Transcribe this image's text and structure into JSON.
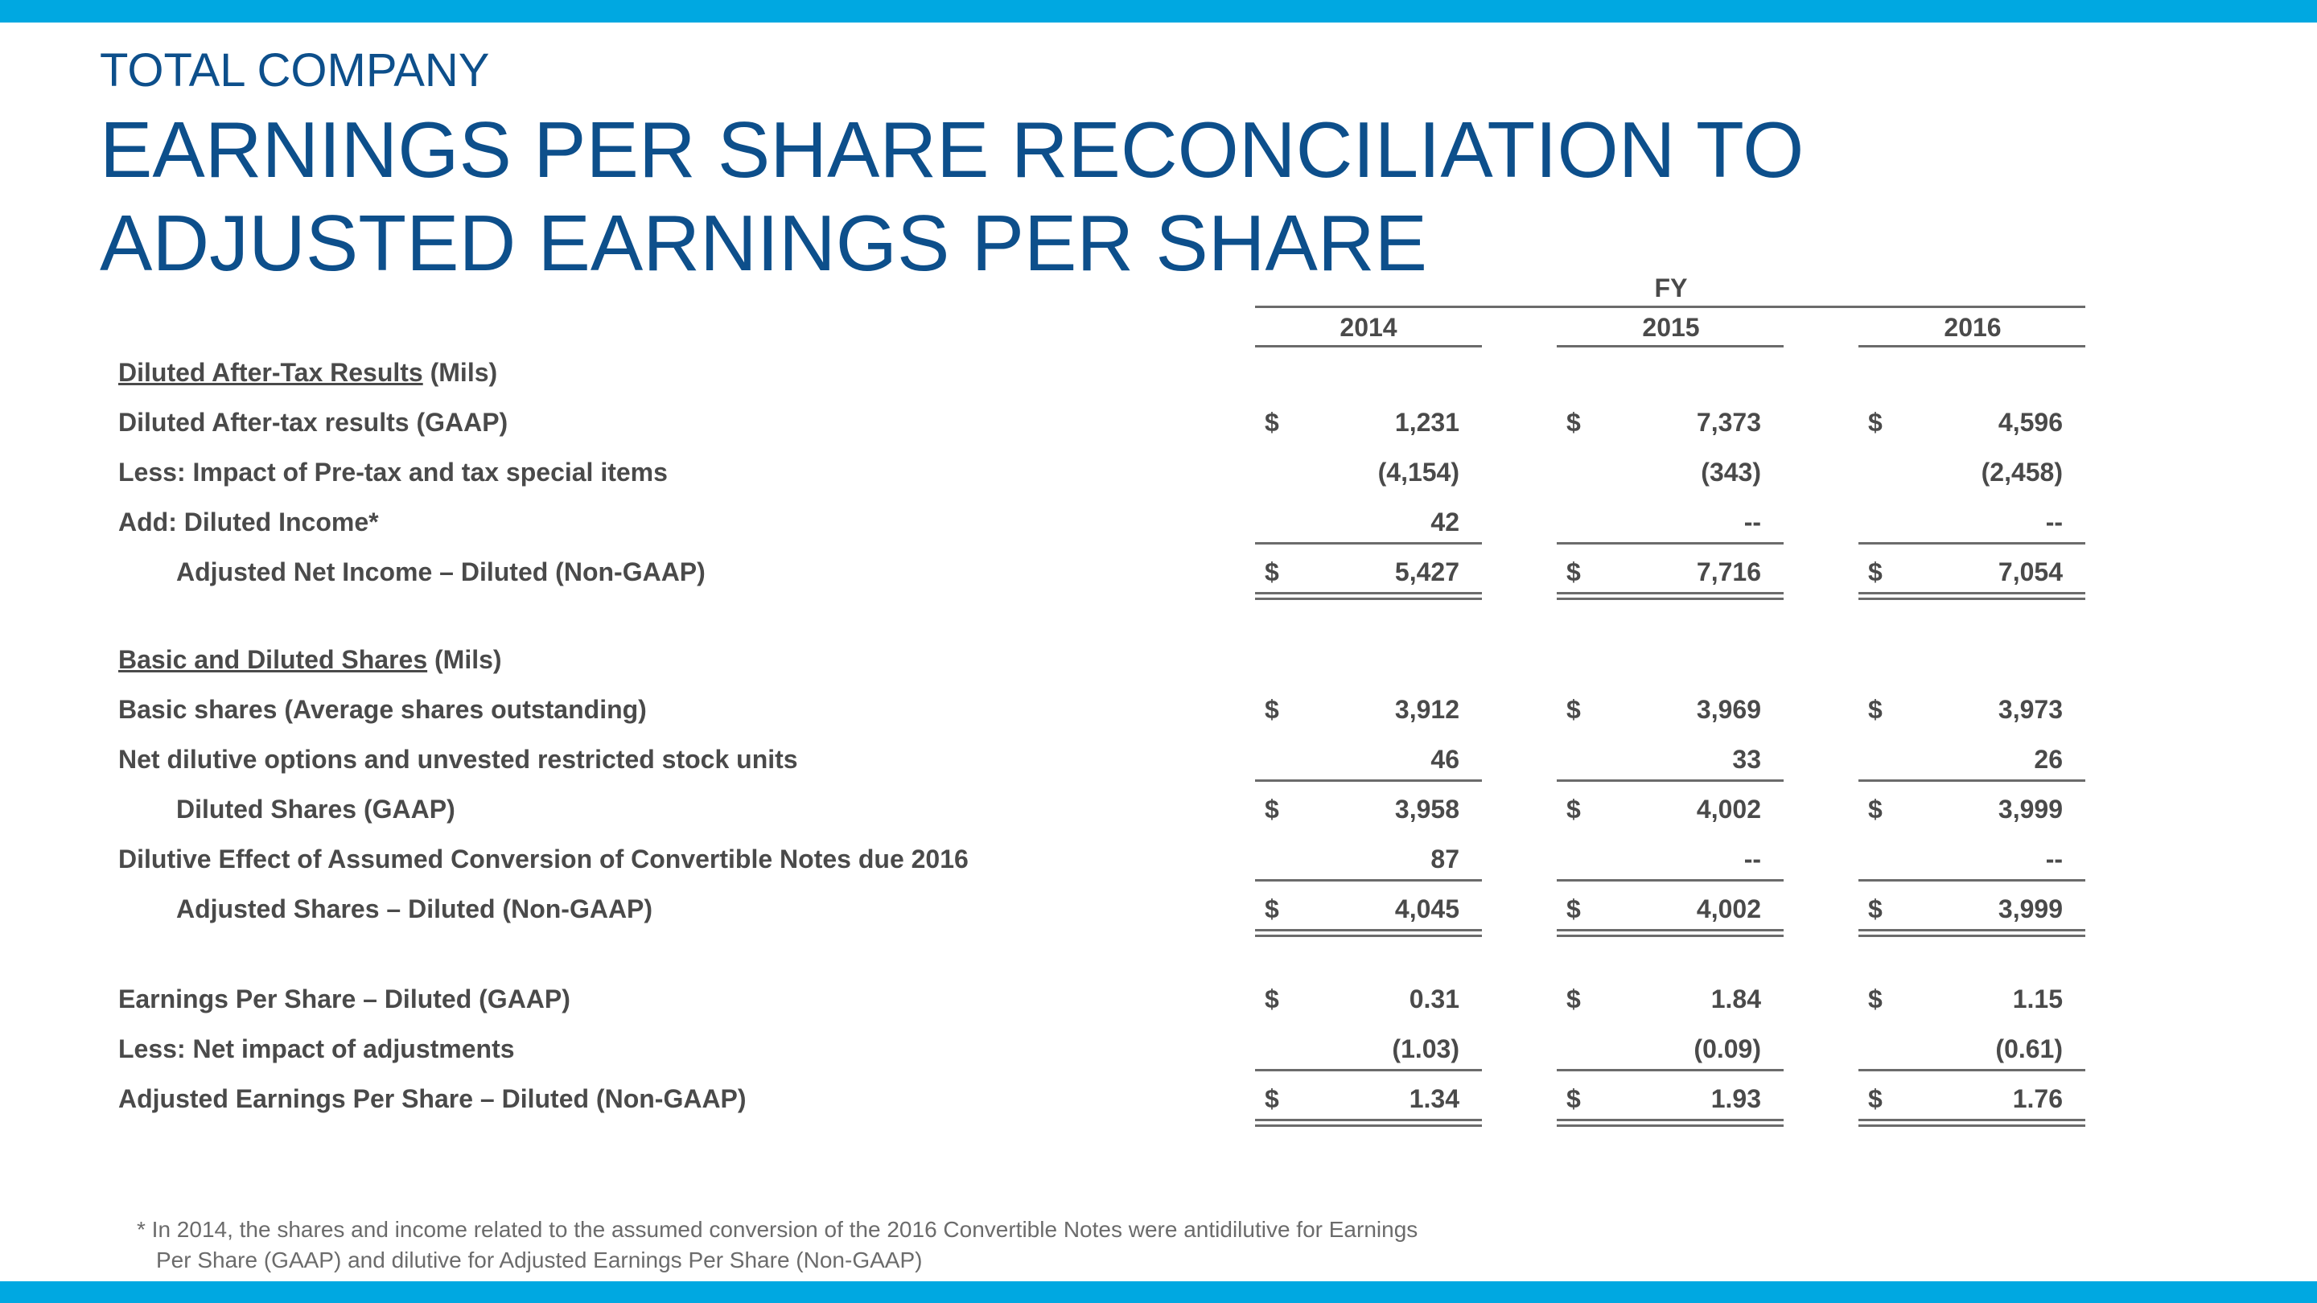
{
  "header": {
    "supertitle": "TOTAL COMPANY",
    "title_line1": "EARNINGS PER SHARE RECONCILIATION TO",
    "title_line2": "ADJUSTED EARNINGS PER SHARE"
  },
  "table": {
    "group_label": "FY",
    "years": [
      "2014",
      "2015",
      "2016"
    ],
    "section1": {
      "heading_underlined": "Diluted After-Tax Results",
      "heading_suffix": " (Mils)",
      "rows": [
        {
          "label": "Diluted After-tax results (GAAP)",
          "dollar": "$",
          "values": [
            "1,231",
            "7,373",
            "4,596"
          ]
        },
        {
          "label": "Less:  Impact of Pre-tax and tax special items",
          "dollar": "",
          "values": [
            "(4,154)",
            "(343)",
            "(2,458)"
          ]
        },
        {
          "label": "Add: Diluted Income*",
          "dollar": "",
          "values": [
            "42",
            "--",
            "--"
          ]
        },
        {
          "label": "Adjusted Net Income – Diluted (Non-GAAP)",
          "dollar": "$",
          "values": [
            "5,427",
            "7,716",
            "7,054"
          ]
        }
      ]
    },
    "section2": {
      "heading_underlined": "Basic and Diluted Shares",
      "heading_suffix": " (Mils)",
      "rows": [
        {
          "label": "Basic shares (Average shares outstanding)",
          "dollar": "$",
          "values": [
            "3,912",
            "3,969",
            "3,973"
          ]
        },
        {
          "label": "Net dilutive options and unvested restricted stock units",
          "dollar": "",
          "values": [
            "46",
            "33",
            "26"
          ]
        },
        {
          "label": "Diluted Shares (GAAP)",
          "dollar": "$",
          "values": [
            "3,958",
            "4,002",
            "3,999"
          ]
        },
        {
          "label": "Dilutive Effect of Assumed Conversion of Convertible Notes due 2016",
          "dollar": "",
          "values": [
            "87",
            "--",
            "--"
          ]
        },
        {
          "label": "Adjusted Shares – Diluted (Non-GAAP)",
          "dollar": "$",
          "values": [
            "4,045",
            "4,002",
            "3,999"
          ]
        }
      ]
    },
    "section3": {
      "rows": [
        {
          "label": "Earnings Per Share – Diluted (GAAP)",
          "dollar": "$",
          "values": [
            "0.31",
            "1.84",
            "1.15"
          ]
        },
        {
          "label": "Less: Net impact of adjustments",
          "dollar": "",
          "values": [
            "(1.03)",
            "(0.09)",
            "(0.61)"
          ]
        },
        {
          "label": "Adjusted Earnings Per Share – Diluted (Non-GAAP)",
          "dollar": "$",
          "values": [
            "1.34",
            "1.93",
            "1.76"
          ]
        }
      ]
    }
  },
  "footnote": {
    "line1": "* In 2014, the shares and income related to the assumed conversion of the 2016 Convertible Notes were antidilutive for Earnings",
    "line2": "Per Share (GAAP) and dilutive for Adjusted Earnings Per Share (Non-GAAP)"
  },
  "colors": {
    "accent_bar": "#00a8e1",
    "title": "#0d4f8b",
    "text": "#4a4a4a"
  }
}
